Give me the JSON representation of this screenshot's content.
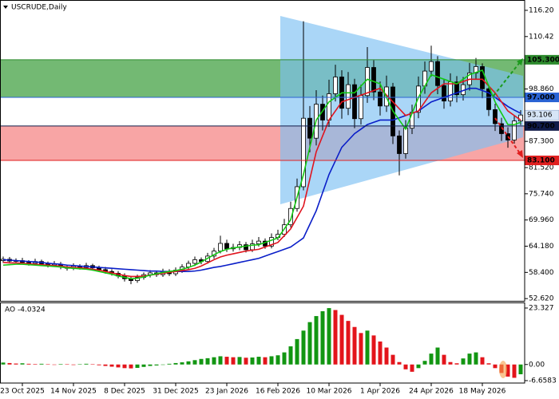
{
  "chart_data": [
    {
      "type": "candlestick",
      "title": "USCRUDE,Daily",
      "categories": [
        null,
        null,
        null,
        "23 Oct 2025",
        null,
        null,
        null,
        null,
        null,
        null,
        null,
        "14 Nov 2025",
        null,
        null,
        null,
        null,
        null,
        null,
        null,
        "8 Dec 2025",
        null,
        null,
        null,
        null,
        null,
        null,
        null,
        "31 Dec 2025",
        null,
        null,
        null,
        null,
        null,
        null,
        null,
        "23 Jan 2026",
        null,
        null,
        null,
        null,
        null,
        null,
        null,
        "16 Feb 2026",
        null,
        null,
        null,
        null,
        null,
        null,
        null,
        "10 Mar 2026",
        null,
        null,
        null,
        null,
        null,
        null,
        null,
        "1 Apr 2026",
        null,
        null,
        null,
        null,
        null,
        null,
        null,
        "24 Apr 2026",
        null,
        null,
        null,
        null,
        null,
        null,
        null,
        "18 May 2026",
        null,
        null,
        null,
        null,
        null,
        null
      ],
      "open": [
        61.0,
        61.3,
        60.9,
        61.0,
        60.6,
        60.4,
        60.8,
        60.3,
        60.0,
        60.2,
        59.6,
        59.3,
        59.8,
        59.5,
        59.9,
        59.4,
        59.0,
        58.6,
        58.2,
        57.6,
        57.0,
        56.6,
        57.3,
        57.9,
        58.3,
        57.9,
        58.6,
        58.1,
        58.9,
        59.6,
        60.4,
        61.2,
        60.8,
        62.0,
        63.1,
        64.8,
        63.6,
        63.9,
        64.5,
        63.4,
        64.7,
        65.3,
        64.2,
        66.1,
        66.8,
        68.9,
        72.5,
        77.3,
        92.4,
        88.0,
        95.5,
        92.0,
        97.8,
        101.5,
        94.6,
        99.8,
        92.3,
        97.4,
        103.6,
        98.2,
        95.1,
        99.3,
        88.5,
        84.6,
        90.2,
        93.7,
        99.5,
        102.8,
        104.9,
        99.6,
        96.2,
        100.4,
        97.6,
        99.8,
        102.4,
        103.8,
        98.9,
        94.3,
        91.2,
        89.0,
        87.6,
        91.8
      ],
      "high": [
        61.9,
        61.8,
        61.5,
        61.6,
        61.1,
        61.4,
        61.2,
        60.8,
        60.9,
        60.7,
        60.1,
        60.4,
        60.2,
        60.5,
        60.3,
        59.9,
        59.6,
        59.1,
        58.7,
        58.2,
        57.6,
        57.9,
        58.4,
        58.9,
        58.8,
        59.2,
        59.1,
        59.5,
        60.2,
        61.0,
        61.9,
        61.7,
        62.7,
        63.8,
        66.5,
        65.6,
        64.7,
        65.3,
        65.1,
        65.6,
        66.2,
        65.9,
        67.0,
        67.8,
        70.2,
        74.0,
        79.1,
        113.8,
        95.1,
        98.6,
        97.4,
        100.9,
        104.2,
        103.0,
        102.6,
        101.1,
        99.8,
        108.1,
        105.2,
        100.5,
        101.8,
        100.2,
        89.7,
        92.0,
        95.4,
        101.6,
        104.9,
        108.4,
        106.1,
        101.0,
        102.3,
        101.7,
        101.5,
        104.6,
        105.7,
        104.5,
        99.8,
        95.6,
        92.5,
        90.4,
        93.0,
        94.2
      ],
      "low": [
        60.5,
        60.4,
        60.5,
        60.1,
        59.9,
        60.0,
        59.8,
        59.5,
        59.6,
        59.1,
        58.8,
        58.9,
        59.0,
        59.1,
        58.8,
        58.5,
        58.1,
        57.7,
        57.1,
        56.4,
        55.8,
        56.1,
        56.8,
        57.3,
        57.4,
        57.4,
        57.6,
        57.6,
        58.3,
        59.0,
        59.8,
        60.2,
        60.3,
        61.4,
        62.6,
        62.9,
        63.0,
        63.3,
        62.8,
        62.9,
        64.1,
        63.6,
        63.7,
        65.5,
        66.2,
        68.3,
        71.8,
        76.5,
        84.9,
        86.4,
        89.7,
        90.5,
        96.1,
        92.3,
        93.1,
        90.2,
        91.0,
        95.8,
        96.4,
        93.0,
        93.8,
        86.7,
        79.8,
        83.5,
        88.9,
        92.4,
        97.8,
        101.6,
        97.7,
        94.5,
        95.0,
        95.9,
        96.3,
        98.5,
        101.1,
        96.8,
        92.9,
        89.6,
        87.4,
        85.9,
        86.8,
        90.9
      ],
      "close": [
        61.3,
        60.9,
        61.0,
        60.6,
        60.4,
        60.8,
        60.3,
        60.0,
        60.2,
        59.6,
        59.3,
        59.8,
        59.5,
        59.9,
        59.4,
        59.0,
        58.6,
        58.2,
        57.6,
        57.0,
        56.6,
        57.3,
        57.9,
        58.3,
        57.9,
        58.6,
        58.1,
        58.9,
        59.6,
        60.4,
        61.2,
        60.8,
        62.0,
        63.1,
        64.8,
        63.6,
        63.9,
        64.5,
        63.4,
        64.7,
        65.3,
        64.2,
        66.1,
        66.8,
        68.9,
        72.5,
        77.3,
        92.4,
        88.0,
        95.5,
        92.0,
        97.8,
        101.5,
        94.6,
        99.8,
        92.3,
        97.4,
        103.6,
        98.2,
        95.1,
        99.3,
        88.5,
        84.6,
        90.2,
        93.7,
        99.5,
        102.8,
        104.9,
        99.6,
        96.2,
        100.4,
        97.6,
        99.8,
        102.4,
        103.8,
        98.9,
        94.3,
        91.2,
        89.0,
        87.6,
        91.8,
        93.106
      ],
      "up_color": "#ffffff",
      "down_color": "#000000",
      "lines": [
        {
          "color": "#0a1ec8",
          "values": [
            61.2,
            61.1,
            61.0,
            60.9,
            60.8,
            60.7,
            60.6,
            60.4,
            60.3,
            60.2,
            60.0,
            59.9,
            59.8,
            59.7,
            59.6,
            59.5,
            59.4,
            59.3,
            59.2,
            59.1,
            59.0,
            58.9,
            58.8,
            58.7,
            58.7,
            58.6,
            58.6,
            58.6,
            58.6,
            58.6,
            58.7,
            58.9,
            59.2,
            59.5,
            59.7,
            60.0,
            60.3,
            60.6,
            60.9,
            61.2,
            61.5,
            62.0,
            62.5,
            63.0,
            63.5,
            64.0,
            65.0,
            66.0,
            69.0,
            72.0,
            76.0,
            80.0,
            83.0,
            86.0,
            87.5,
            89.0,
            90.0,
            91.0,
            91.5,
            92.0,
            92.0,
            92.0,
            92.5,
            93.0,
            93.5,
            94.0,
            95.0,
            96.0,
            96.5,
            97.0,
            97.5,
            98.0,
            98.5,
            99.0,
            99.0,
            98.5,
            98.0,
            97.0,
            96.0,
            95.0,
            94.2,
            93.5
          ]
        },
        {
          "color": "#e0141e",
          "values": [
            60.6,
            60.5,
            60.5,
            60.4,
            60.3,
            60.2,
            60.1,
            60.0,
            59.9,
            59.8,
            59.6,
            59.5,
            59.4,
            59.3,
            59.1,
            58.9,
            58.6,
            58.3,
            58.0,
            57.7,
            57.5,
            57.5,
            57.6,
            57.8,
            58.0,
            58.2,
            58.4,
            58.6,
            58.8,
            59.0,
            59.3,
            59.8,
            60.5,
            61.2,
            61.8,
            62.2,
            62.5,
            62.8,
            63.1,
            63.3,
            63.5,
            64.0,
            64.5,
            65.0,
            66.5,
            68.0,
            70.5,
            73.0,
            79.0,
            85.0,
            88.5,
            92.0,
            94.0,
            96.0,
            96.5,
            97.0,
            97.5,
            98.0,
            98.5,
            99.0,
            97.5,
            96.0,
            94.5,
            93.0,
            93.5,
            94.0,
            96.0,
            98.0,
            99.0,
            100.0,
            100.0,
            100.0,
            100.5,
            101.0,
            101.0,
            101.0,
            99.5,
            98.0,
            96.0,
            94.0,
            93.0,
            92.0
          ]
        },
        {
          "color": "#14c814",
          "values": [
            60.0,
            60.1,
            60.2,
            60.2,
            60.1,
            60.0,
            59.9,
            59.8,
            59.7,
            59.6,
            59.4,
            59.3,
            59.2,
            59.1,
            58.9,
            58.6,
            58.3,
            58.0,
            57.6,
            57.3,
            57.0,
            57.1,
            57.4,
            57.8,
            58.1,
            58.4,
            58.6,
            58.8,
            59.1,
            59.5,
            60.0,
            60.7,
            61.5,
            62.3,
            63.0,
            63.5,
            63.8,
            64.0,
            64.2,
            64.4,
            64.5,
            65.0,
            65.5,
            66.0,
            68.0,
            70.0,
            75.0,
            80.0,
            86.0,
            92.0,
            94.0,
            96.0,
            97.0,
            98.0,
            98.0,
            98.0,
            99.5,
            101.0,
            100.5,
            100.0,
            97.0,
            94.0,
            92.0,
            90.0,
            93.5,
            97.0,
            99.5,
            102.0,
            101.5,
            101.0,
            100.5,
            100.0,
            101.0,
            102.0,
            102.5,
            103.0,
            99.5,
            96.0,
            93.5,
            91.0,
            91.0,
            91.5
          ]
        }
      ],
      "zones": [
        {
          "from": 97.0,
          "to": 105.3,
          "color": "#5aad5a"
        },
        {
          "from": 83.1,
          "to": 90.7,
          "color": "#f79595"
        }
      ],
      "levels": [
        {
          "value": 105.3,
          "label": "105.300",
          "color": "#2e8b2e"
        },
        {
          "value": 97.0,
          "label": "97.000",
          "color": "#2a63d4"
        },
        {
          "value": 90.7,
          "label": "90.700",
          "color": "#101a48"
        },
        {
          "value": 83.1,
          "label": "83.100",
          "color": "#e02020"
        }
      ],
      "current_price": 93.106,
      "current_price_color": "#d7e5f7",
      "ylim": [
        52.3,
        117.6
      ],
      "yticks": [
        {
          "value": 116.2,
          "label": "116.20"
        },
        110.42,
        {
          "value": 98.86,
          "label": "98.860"
        },
        {
          "value": 87.3,
          "label": "87.300"
        },
        {
          "value": 81.52,
          "label": "81.520"
        },
        {
          "value": 75.74,
          "label": "75.740"
        },
        {
          "value": 69.96,
          "label": "69.960"
        },
        {
          "value": 64.18,
          "label": "64.180"
        },
        {
          "value": 58.4,
          "label": "58.400"
        },
        {
          "value": 52.62,
          "label": "52.620"
        }
      ]
    },
    {
      "type": "histogram-oscillator",
      "title": "AO",
      "values": [
        0.8,
        0.6,
        0.4,
        0.5,
        0.3,
        0.2,
        0.3,
        0.1,
        -0.1,
        0.2,
        0.1,
        -0.2,
        0.1,
        0.3,
        0.1,
        -0.3,
        -0.6,
        -0.9,
        -1.2,
        -1.5,
        -1.6,
        -1.4,
        -1.0,
        -0.6,
        -0.4,
        -0.1,
        0.3,
        0.6,
        0.9,
        1.3,
        1.8,
        2.3,
        2.6,
        3.0,
        3.4,
        3.2,
        3.0,
        3.1,
        2.8,
        2.9,
        3.2,
        3.0,
        3.4,
        3.8,
        5.0,
        7.5,
        10.5,
        14.0,
        17.5,
        20.0,
        22.0,
        23.3,
        22.5,
        20.5,
        18.0,
        15.5,
        13.0,
        14.0,
        12.0,
        9.5,
        7.0,
        4.0,
        1.0,
        -2.0,
        -3.0,
        -1.5,
        1.5,
        4.5,
        7.0,
        4.0,
        1.0,
        0.5,
        2.5,
        4.5,
        5.0,
        3.0,
        0.5,
        -1.5,
        -3.5,
        -5.0,
        -5.5,
        -4.0324
      ],
      "up_color": "#129612",
      "down_color": "#e3141b",
      "ylim": [
        -7.0,
        25.3
      ],
      "yticks": [
        23.327,
        {
          "value": 0,
          "label": "0.00"
        },
        -6.6583
      ]
    }
  ]
}
